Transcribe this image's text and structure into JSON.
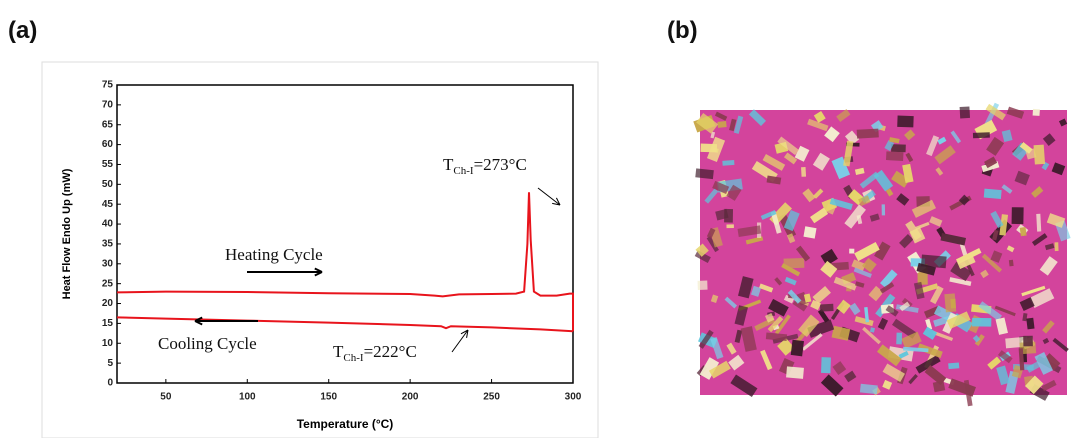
{
  "panels": [
    "(a)",
    "(b)"
  ],
  "chart_data": {
    "type": "line",
    "y_label": "Heat Flow Endo Up (mW)",
    "x_label": "Temperature (°C)",
    "xlim": [
      20,
      300
    ],
    "xticks": [
      50,
      100,
      150,
      200,
      250,
      300
    ],
    "ylim": [
      0,
      75
    ],
    "yticks": [
      0,
      5,
      10,
      15,
      20,
      25,
      30,
      35,
      40,
      45,
      50,
      55,
      60,
      65,
      70,
      75
    ],
    "series": [
      {
        "name": "Heating Cycle",
        "color": "#e8141c",
        "x": [
          20,
          50,
          100,
          150,
          200,
          215,
          220,
          230,
          250,
          265,
          270,
          272,
          273,
          274,
          276,
          280,
          290,
          298,
          300,
          300
        ],
        "values": [
          22.8,
          23,
          22.9,
          22.6,
          22.4,
          22,
          21.8,
          22.3,
          22.4,
          22.5,
          23,
          35,
          48,
          36,
          23,
          22,
          22,
          22.5,
          22.5,
          13
        ]
      },
      {
        "name": "Cooling Cycle",
        "color": "#e8141c",
        "x": [
          300,
          280,
          250,
          225,
          222,
          219,
          200,
          150,
          100,
          50,
          20
        ],
        "values": [
          13,
          13.5,
          14,
          14.3,
          13.8,
          14.3,
          14.6,
          15.2,
          15.7,
          16.2,
          16.5
        ]
      }
    ],
    "annotations": [
      {
        "main": "T",
        "sub": "Ch-I",
        "rest": "=273°C"
      },
      {
        "main": "T",
        "sub": "Ch-I",
        "rest": "=222°C"
      }
    ]
  }
}
